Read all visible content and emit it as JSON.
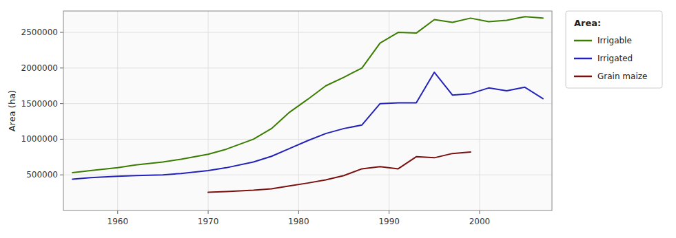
{
  "chart_data": {
    "type": "line",
    "ylabel": "Area (ha)",
    "legend_title": "Area:",
    "legend": "right",
    "grid": true,
    "xlim": [
      1954,
      2008
    ],
    "ylim": [
      0,
      2800000
    ],
    "xticks": [
      1960,
      1970,
      1980,
      1990,
      2000
    ],
    "yticks": [
      500000,
      1000000,
      1500000,
      2000000,
      2500000
    ],
    "series": [
      {
        "name": "Irrigable",
        "color": "#3a7d00",
        "x": [
          1955,
          1957,
          1960,
          1962,
          1965,
          1967,
          1970,
          1972,
          1975,
          1977,
          1979,
          1981,
          1983,
          1985,
          1987,
          1989,
          1991,
          1993,
          1995,
          1997,
          1999,
          2001,
          2003,
          2005,
          2007
        ],
        "values": [
          530000,
          560000,
          600000,
          640000,
          680000,
          720000,
          790000,
          860000,
          1000000,
          1150000,
          1380000,
          1560000,
          1750000,
          1870000,
          2000000,
          2350000,
          2500000,
          2490000,
          2680000,
          2640000,
          2700000,
          2650000,
          2670000,
          2720000,
          2700000
        ]
      },
      {
        "name": "Irrigated",
        "color": "#2222bb",
        "x": [
          1955,
          1957,
          1960,
          1962,
          1965,
          1967,
          1970,
          1972,
          1975,
          1977,
          1979,
          1981,
          1983,
          1985,
          1987,
          1989,
          1991,
          1993,
          1995,
          1997,
          1999,
          2001,
          2003,
          2005,
          2007
        ],
        "values": [
          440000,
          460000,
          480000,
          490000,
          500000,
          520000,
          560000,
          600000,
          680000,
          760000,
          870000,
          980000,
          1080000,
          1150000,
          1200000,
          1500000,
          1510000,
          1510000,
          1940000,
          1620000,
          1640000,
          1720000,
          1680000,
          1730000,
          1570000
        ]
      },
      {
        "name": "Grain maize",
        "color": "#7b1010",
        "x": [
          1970,
          1972,
          1975,
          1977,
          1979,
          1981,
          1983,
          1985,
          1987,
          1989,
          1991,
          1993,
          1995,
          1997,
          1999
        ],
        "values": [
          255000,
          265000,
          285000,
          305000,
          345000,
          385000,
          430000,
          490000,
          585000,
          615000,
          585000,
          755000,
          740000,
          800000,
          820000
        ]
      }
    ]
  }
}
